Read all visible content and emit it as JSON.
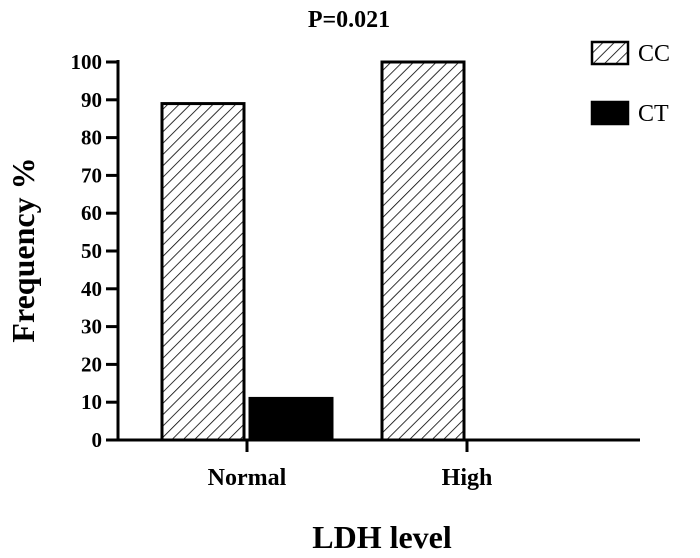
{
  "chart_data": {
    "type": "bar",
    "title": "P=0.021",
    "xlabel": "LDH level",
    "ylabel": "Frequency %",
    "categories": [
      "Normal",
      "High"
    ],
    "series": [
      {
        "name": "CC",
        "values": [
          89,
          100
        ],
        "fill": "hatch"
      },
      {
        "name": "CT",
        "values": [
          11,
          0
        ],
        "fill": "#000000"
      }
    ],
    "ylim": [
      0,
      100
    ],
    "yticks": [
      "0",
      "10",
      "20",
      "30",
      "40",
      "50",
      "60",
      "70",
      "80",
      "90",
      "100"
    ],
    "legend": {
      "position": "top-right"
    },
    "grid": false
  }
}
